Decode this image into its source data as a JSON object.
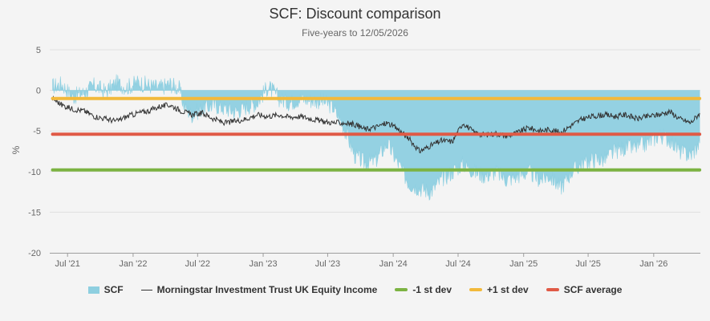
{
  "chart_data": {
    "type": "area",
    "title": "SCF: Discount comparison",
    "subtitle": "Five-years to 12/05/2026",
    "ylabel": "%",
    "ylim": [
      -20,
      5
    ],
    "yticks": [
      5,
      0,
      -5,
      -10,
      -15,
      -20
    ],
    "xlim": [
      "2021-05-12",
      "2026-05-12"
    ],
    "xticks": [
      {
        "date": "2021-07-01",
        "label": "Jul '21"
      },
      {
        "date": "2022-01-01",
        "label": "Jan '22"
      },
      {
        "date": "2022-07-01",
        "label": "Jul '22"
      },
      {
        "date": "2023-01-01",
        "label": "Jan '23"
      },
      {
        "date": "2023-07-01",
        "label": "Jul '23"
      },
      {
        "date": "2024-01-01",
        "label": "Jan '24"
      },
      {
        "date": "2024-07-01",
        "label": "Jul '24"
      },
      {
        "date": "2025-01-01",
        "label": "Jan '25"
      },
      {
        "date": "2025-07-01",
        "label": "Jul '25"
      },
      {
        "date": "2026-01-01",
        "label": "Jan '26"
      }
    ],
    "grid": true,
    "legend_position": "bottom",
    "series": [
      {
        "name": "SCF",
        "kind": "area",
        "color": "#8ecfe0",
        "points": [
          [
            "2021-05-20",
            0.5
          ],
          [
            "2021-06-15",
            0.8
          ],
          [
            "2021-07-15",
            -0.8
          ],
          [
            "2021-08-15",
            -0.3
          ],
          [
            "2021-09-15",
            0.6
          ],
          [
            "2021-10-15",
            -0.2
          ],
          [
            "2021-11-15",
            0.9
          ],
          [
            "2021-12-15",
            0.4
          ],
          [
            "2022-01-15",
            1.0
          ],
          [
            "2022-02-15",
            0.6
          ],
          [
            "2022-03-15",
            0.3
          ],
          [
            "2022-04-15",
            0.8
          ],
          [
            "2022-05-10",
            0.2
          ],
          [
            "2022-05-25",
            -2.0
          ],
          [
            "2022-06-15",
            -3.0
          ],
          [
            "2022-07-15",
            -2.2
          ],
          [
            "2022-08-15",
            -1.8
          ],
          [
            "2022-09-15",
            -2.2
          ],
          [
            "2022-10-15",
            -2.6
          ],
          [
            "2022-11-15",
            -2.0
          ],
          [
            "2022-12-15",
            -1.5
          ],
          [
            "2023-01-15",
            0.5
          ],
          [
            "2023-02-15",
            -1.0
          ],
          [
            "2023-03-15",
            -1.5
          ],
          [
            "2023-04-15",
            -1.0
          ],
          [
            "2023-05-15",
            -1.2
          ],
          [
            "2023-06-15",
            -1.3
          ],
          [
            "2023-07-15",
            -2.0
          ],
          [
            "2023-08-15",
            -4.5
          ],
          [
            "2023-09-15",
            -8.0
          ],
          [
            "2023-10-15",
            -9.0
          ],
          [
            "2023-11-15",
            -8.5
          ],
          [
            "2023-12-15",
            -6.5
          ],
          [
            "2024-01-15",
            -9.0
          ],
          [
            "2024-02-15",
            -11.5
          ],
          [
            "2024-03-15",
            -12.0
          ],
          [
            "2024-04-15",
            -12.5
          ],
          [
            "2024-05-15",
            -11.0
          ],
          [
            "2024-06-15",
            -10.0
          ],
          [
            "2024-07-15",
            -9.0
          ],
          [
            "2024-08-15",
            -10.0
          ],
          [
            "2024-09-15",
            -10.5
          ],
          [
            "2024-10-15",
            -10.0
          ],
          [
            "2024-11-15",
            -11.0
          ],
          [
            "2024-12-15",
            -10.5
          ],
          [
            "2025-01-15",
            -10.0
          ],
          [
            "2025-02-15",
            -11.0
          ],
          [
            "2025-03-15",
            -10.5
          ],
          [
            "2025-04-15",
            -12.0
          ],
          [
            "2025-05-15",
            -10.0
          ],
          [
            "2025-06-15",
            -9.0
          ],
          [
            "2025-07-15",
            -8.5
          ],
          [
            "2025-08-15",
            -8.5
          ],
          [
            "2025-09-15",
            -7.5
          ],
          [
            "2025-10-15",
            -7.0
          ],
          [
            "2025-11-15",
            -7.0
          ],
          [
            "2025-12-15",
            -6.5
          ],
          [
            "2026-01-15",
            -5.5
          ],
          [
            "2026-02-15",
            -6.0
          ],
          [
            "2026-03-15",
            -7.5
          ],
          [
            "2026-04-15",
            -8.0
          ],
          [
            "2026-05-10",
            -6.5
          ]
        ]
      },
      {
        "name": "Morningstar Investment Trust UK Equity Income",
        "kind": "line",
        "color": "#333333",
        "points": [
          [
            "2021-05-20",
            -1.0
          ],
          [
            "2021-06-15",
            -1.8
          ],
          [
            "2021-07-15",
            -2.3
          ],
          [
            "2021-08-15",
            -2.5
          ],
          [
            "2021-09-15",
            -3.2
          ],
          [
            "2021-10-15",
            -3.5
          ],
          [
            "2021-11-15",
            -3.8
          ],
          [
            "2021-12-15",
            -3.2
          ],
          [
            "2022-01-15",
            -2.8
          ],
          [
            "2022-02-15",
            -2.5
          ],
          [
            "2022-03-15",
            -2.0
          ],
          [
            "2022-04-15",
            -1.8
          ],
          [
            "2022-05-15",
            -2.5
          ],
          [
            "2022-06-15",
            -3.0
          ],
          [
            "2022-07-15",
            -2.8
          ],
          [
            "2022-08-15",
            -3.5
          ],
          [
            "2022-09-15",
            -4.0
          ],
          [
            "2022-10-15",
            -3.8
          ],
          [
            "2022-11-15",
            -3.5
          ],
          [
            "2022-12-15",
            -3.0
          ],
          [
            "2023-01-15",
            -3.2
          ],
          [
            "2023-02-15",
            -3.0
          ],
          [
            "2023-03-15",
            -3.3
          ],
          [
            "2023-04-15",
            -3.2
          ],
          [
            "2023-05-15",
            -3.5
          ],
          [
            "2023-06-15",
            -3.8
          ],
          [
            "2023-07-15",
            -4.0
          ],
          [
            "2023-08-15",
            -4.0
          ],
          [
            "2023-09-15",
            -4.2
          ],
          [
            "2023-10-15",
            -4.8
          ],
          [
            "2023-11-15",
            -4.5
          ],
          [
            "2023-12-15",
            -4.0
          ],
          [
            "2024-01-15",
            -4.8
          ],
          [
            "2024-02-15",
            -6.0
          ],
          [
            "2024-03-15",
            -7.5
          ],
          [
            "2024-04-15",
            -6.8
          ],
          [
            "2024-05-15",
            -6.2
          ],
          [
            "2024-06-15",
            -6.3
          ],
          [
            "2024-07-15",
            -4.0
          ],
          [
            "2024-08-15",
            -5.2
          ],
          [
            "2024-09-15",
            -5.5
          ],
          [
            "2024-10-15",
            -5.3
          ],
          [
            "2024-11-15",
            -5.6
          ],
          [
            "2024-12-15",
            -5.2
          ],
          [
            "2025-01-15",
            -4.6
          ],
          [
            "2025-02-15",
            -5.0
          ],
          [
            "2025-03-15",
            -4.8
          ],
          [
            "2025-04-15",
            -5.2
          ],
          [
            "2025-05-15",
            -4.3
          ],
          [
            "2025-06-15",
            -3.5
          ],
          [
            "2025-07-15",
            -3.2
          ],
          [
            "2025-08-15",
            -3.0
          ],
          [
            "2025-09-15",
            -3.2
          ],
          [
            "2025-10-15",
            -3.0
          ],
          [
            "2025-11-15",
            -3.5
          ],
          [
            "2025-12-15",
            -3.2
          ],
          [
            "2026-01-15",
            -3.0
          ],
          [
            "2026-02-15",
            -2.6
          ],
          [
            "2026-03-15",
            -3.5
          ],
          [
            "2026-04-15",
            -4.0
          ],
          [
            "2026-05-10",
            -2.8
          ]
        ]
      },
      {
        "name": "-1 st dev",
        "kind": "hline",
        "color": "#7cb342",
        "value": -9.8
      },
      {
        "name": "+1 st dev",
        "kind": "hline",
        "color": "#f2b93b",
        "value": -1.0
      },
      {
        "name": "SCF average",
        "kind": "hline",
        "color": "#e05a46",
        "value": -5.4
      }
    ]
  }
}
